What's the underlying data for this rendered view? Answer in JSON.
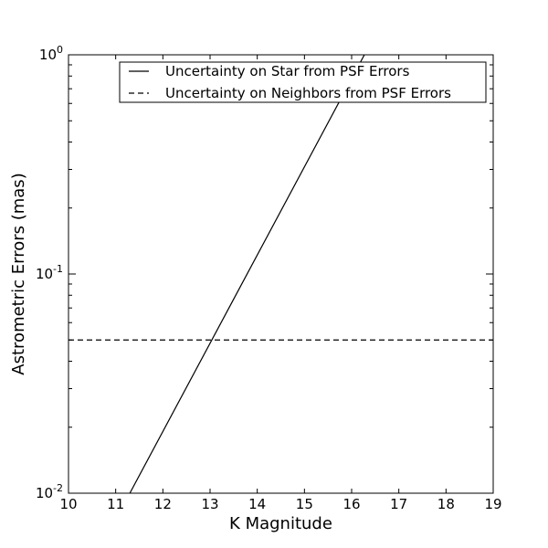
{
  "chart_data": {
    "type": "line",
    "xlabel": "K Magnitude",
    "ylabel": "Astrometric Errors (mas)",
    "xlim": [
      10,
      19
    ],
    "ylim": [
      0.01,
      1
    ],
    "yscale": "log",
    "xticks": [
      "10",
      "11",
      "12",
      "13",
      "14",
      "15",
      "16",
      "17",
      "18",
      "19"
    ],
    "yticks": [
      {
        "value": 0.01,
        "base": "10",
        "exp": "-2"
      },
      {
        "value": 0.1,
        "base": "10",
        "exp": "-1"
      },
      {
        "value": 1,
        "base": "10",
        "exp": "0"
      }
    ],
    "grid": false,
    "legend_position": "top-right",
    "series": [
      {
        "name": "Uncertainty on Star from PSF Errors",
        "style": "solid",
        "color": "#000000",
        "x": [
          11.3,
          16.27
        ],
        "y": [
          0.01,
          1.0
        ]
      },
      {
        "name": "Uncertainty on Neighbors from PSF Errors",
        "style": "dashed",
        "color": "#000000",
        "x": [
          10,
          19
        ],
        "y": [
          0.05,
          0.05
        ]
      }
    ]
  }
}
